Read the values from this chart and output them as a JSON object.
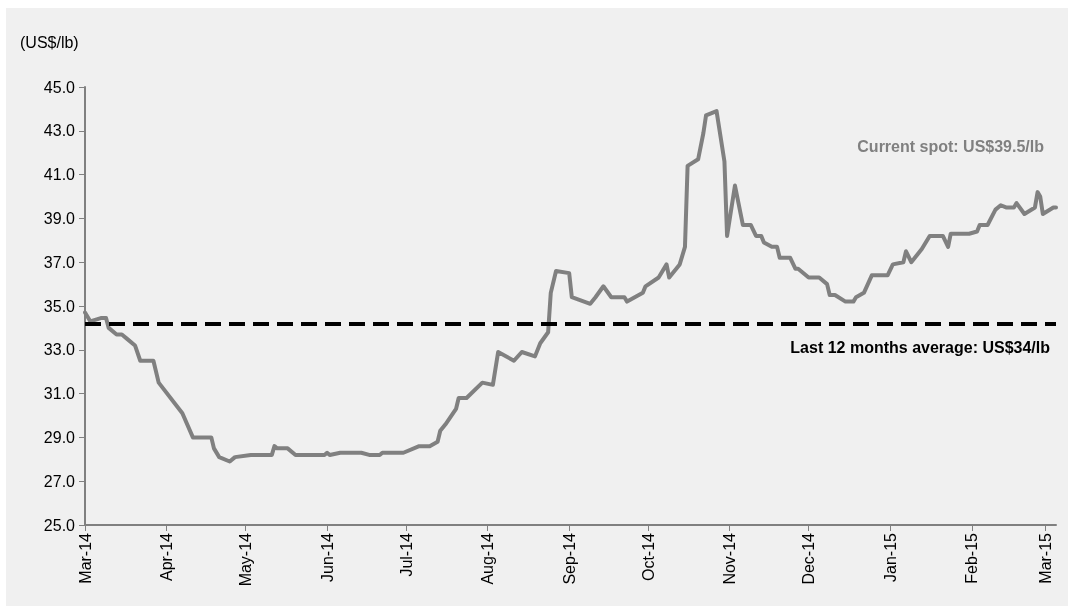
{
  "chart_data": {
    "type": "line",
    "ylabel": "(US$/lb)",
    "x": [
      "2014-03-01",
      "2014-03-03",
      "2014-03-07",
      "2014-03-09",
      "2014-03-10",
      "2014-03-13",
      "2014-03-15",
      "2014-03-17",
      "2014-03-20",
      "2014-03-22",
      "2014-03-27",
      "2014-03-29",
      "2014-04-07",
      "2014-04-11",
      "2014-04-18",
      "2014-04-19",
      "2014-04-21",
      "2014-04-25",
      "2014-04-27",
      "2014-05-03",
      "2014-05-11",
      "2014-05-12",
      "2014-05-13",
      "2014-05-17",
      "2014-05-20",
      "2014-05-31",
      "2014-06-01",
      "2014-06-02",
      "2014-06-06",
      "2014-06-14",
      "2014-06-17",
      "2014-06-21",
      "2014-06-22",
      "2014-06-30",
      "2014-07-06",
      "2014-07-10",
      "2014-07-13",
      "2014-07-14",
      "2014-07-16",
      "2014-07-20",
      "2014-07-21",
      "2014-07-24",
      "2014-07-30",
      "2014-08-03",
      "2014-08-05",
      "2014-08-11",
      "2014-08-14",
      "2014-08-19",
      "2014-08-21",
      "2014-08-24",
      "2014-08-25",
      "2014-08-27",
      "2014-09-01",
      "2014-09-02",
      "2014-09-09",
      "2014-09-11",
      "2014-09-14",
      "2014-09-17",
      "2014-09-22",
      "2014-09-23",
      "2014-09-29",
      "2014-09-30",
      "2014-10-05",
      "2014-10-08",
      "2014-10-09",
      "2014-10-13",
      "2014-10-15",
      "2014-10-16",
      "2014-10-20",
      "2014-10-22",
      "2014-10-23",
      "2014-10-27",
      "2014-10-30",
      "2014-10-31",
      "2014-11-03",
      "2014-11-06",
      "2014-11-09",
      "2014-11-11",
      "2014-11-13",
      "2014-11-14",
      "2014-11-17",
      "2014-11-19",
      "2014-11-20",
      "2014-11-24",
      "2014-11-26",
      "2014-11-27",
      "2014-12-01",
      "2014-12-05",
      "2014-12-08",
      "2014-12-09",
      "2014-12-11",
      "2014-12-15",
      "2014-12-18",
      "2014-12-19",
      "2014-12-22",
      "2014-12-25",
      "2014-12-31",
      "2015-01-02",
      "2015-01-06",
      "2015-01-07",
      "2015-01-09",
      "2015-01-13",
      "2015-01-16",
      "2015-01-21",
      "2015-01-23",
      "2015-01-24",
      "2015-01-31",
      "2015-02-03",
      "2015-02-04",
      "2015-02-07",
      "2015-02-10",
      "2015-02-12",
      "2015-02-14",
      "2015-02-17",
      "2015-02-18",
      "2015-02-21",
      "2015-02-25",
      "2015-02-26",
      "2015-02-27",
      "2015-02-28",
      "2015-03-04",
      "2015-03-05"
    ],
    "series": [
      {
        "color": "#808080",
        "values": [
          34.7,
          34.3,
          34.45,
          34.45,
          34.0,
          33.7,
          33.7,
          33.5,
          33.2,
          32.5,
          32.5,
          31.5,
          30.1,
          29.0,
          29.0,
          28.5,
          28.1,
          27.9,
          28.1,
          28.2,
          28.2,
          28.6,
          28.5,
          28.5,
          28.2,
          28.2,
          28.3,
          28.2,
          28.3,
          28.3,
          28.2,
          28.2,
          28.3,
          28.3,
          28.6,
          28.6,
          28.8,
          29.3,
          29.6,
          30.3,
          30.8,
          30.8,
          31.5,
          31.4,
          32.9,
          32.5,
          32.9,
          32.7,
          33.3,
          33.8,
          35.6,
          36.6,
          36.5,
          35.4,
          35.1,
          35.4,
          35.9,
          35.4,
          35.4,
          35.2,
          35.6,
          35.9,
          36.3,
          36.9,
          36.3,
          36.9,
          37.7,
          41.4,
          41.7,
          42.9,
          43.7,
          43.9,
          41.6,
          38.2,
          40.5,
          38.7,
          38.7,
          38.2,
          38.2,
          37.9,
          37.7,
          37.7,
          37.2,
          37.2,
          36.7,
          36.7,
          36.3,
          36.3,
          36.0,
          35.5,
          35.5,
          35.2,
          35.2,
          35.4,
          35.6,
          36.4,
          36.4,
          36.9,
          37.0,
          37.5,
          37.0,
          37.6,
          38.2,
          38.2,
          37.7,
          38.3,
          38.3,
          38.4,
          38.7,
          38.7,
          39.4,
          39.6,
          39.5,
          39.5,
          39.7,
          39.2,
          39.5,
          40.2,
          40.0,
          39.2,
          39.5,
          39.5
        ]
      }
    ],
    "xlim": [
      "2014-03-01",
      "2015-03-05"
    ],
    "xticks": [
      {
        "value": "2014-03-01",
        "label": "Mar-14"
      },
      {
        "value": "2014-04-01",
        "label": "Apr-14"
      },
      {
        "value": "2014-05-01",
        "label": "May-14"
      },
      {
        "value": "2014-06-01",
        "label": "Jun-14"
      },
      {
        "value": "2014-07-01",
        "label": "Jul-14"
      },
      {
        "value": "2014-08-01",
        "label": "Aug-14"
      },
      {
        "value": "2014-09-01",
        "label": "Sep-14"
      },
      {
        "value": "2014-10-01",
        "label": "Oct-14"
      },
      {
        "value": "2014-11-01",
        "label": "Nov-14"
      },
      {
        "value": "2014-12-01",
        "label": "Dec-14"
      },
      {
        "value": "2015-01-01",
        "label": "Jan-15"
      },
      {
        "value": "2015-02-01",
        "label": "Feb-15"
      },
      {
        "value": "2015-03-01",
        "label": "Mar-15"
      }
    ],
    "ylim": [
      25,
      45
    ],
    "yticks": [
      {
        "value": 25,
        "label": "25.0"
      },
      {
        "value": 27,
        "label": "27.0"
      },
      {
        "value": 29,
        "label": "29.0"
      },
      {
        "value": 31,
        "label": "31.0"
      },
      {
        "value": 33,
        "label": "33.0"
      },
      {
        "value": 35,
        "label": "35.0"
      },
      {
        "value": 37,
        "label": "37.0"
      },
      {
        "value": 39,
        "label": "39.0"
      },
      {
        "value": 41,
        "label": "41.0"
      },
      {
        "value": 43,
        "label": "43.0"
      },
      {
        "value": 45,
        "label": "45.0"
      }
    ],
    "ref_lines": [
      {
        "axis": "y",
        "value": 34.2,
        "label": "Last 12 months average: US$34/lb",
        "color": "#000000",
        "line_style": "dashed"
      }
    ],
    "annotations": [
      "Current spot: US$39.5/lb"
    ],
    "grid": false,
    "marker": "none",
    "line_style": "solid"
  }
}
